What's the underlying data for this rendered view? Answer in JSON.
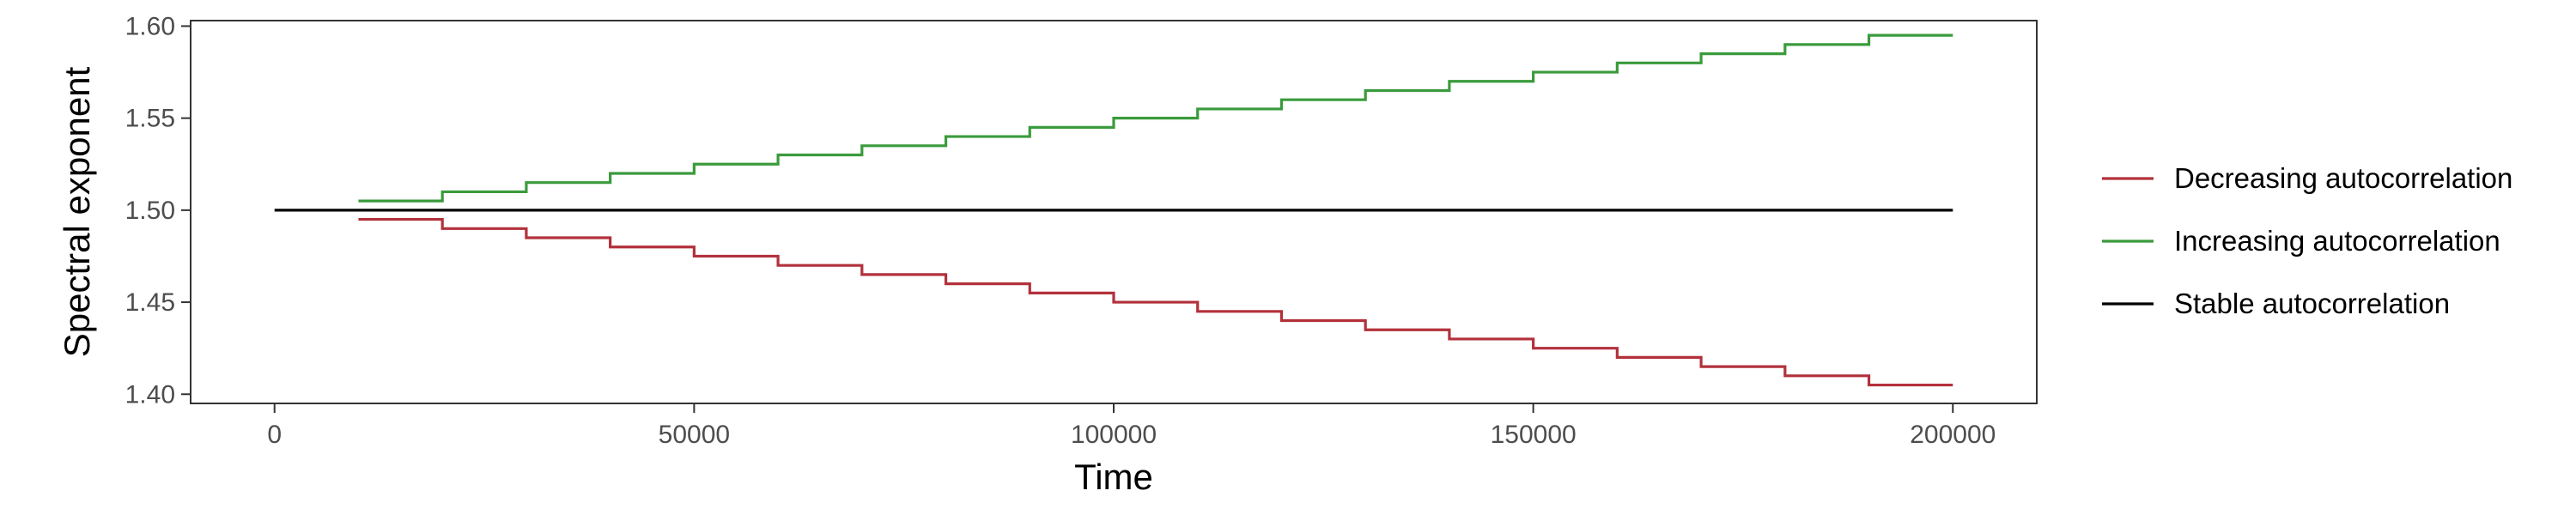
{
  "chart_data": {
    "type": "line",
    "line_style": "step",
    "title": "",
    "xlabel": "Time",
    "ylabel": "Spectral exponent",
    "xlim": [
      -10000,
      210000
    ],
    "ylim": [
      1.395,
      1.603
    ],
    "x_ticks": [
      0,
      50000,
      100000,
      150000,
      200000
    ],
    "x_tick_labels": [
      "0",
      "50000",
      "100000",
      "150000",
      "200000"
    ],
    "y_ticks": [
      1.4,
      1.45,
      1.5,
      1.55,
      1.6
    ],
    "y_tick_labels": [
      "1.40",
      "1.45",
      "1.50",
      "1.55",
      "1.60"
    ],
    "grid": false,
    "legend_position": "right",
    "series": [
      {
        "name": "Decreasing autocorrelation",
        "color": "#b2313b",
        "x": [
          10000,
          20000,
          30000,
          40000,
          50000,
          60000,
          70000,
          80000,
          90000,
          100000,
          110000,
          120000,
          130000,
          140000,
          150000,
          160000,
          170000,
          180000,
          190000,
          200000
        ],
        "y": [
          1.495,
          1.49,
          1.485,
          1.48,
          1.475,
          1.47,
          1.465,
          1.46,
          1.455,
          1.45,
          1.445,
          1.44,
          1.435,
          1.43,
          1.425,
          1.42,
          1.415,
          1.41,
          1.405,
          1.405
        ]
      },
      {
        "name": "Increasing autocorrelation",
        "color": "#3a9b3c",
        "x": [
          10000,
          20000,
          30000,
          40000,
          50000,
          60000,
          70000,
          80000,
          90000,
          100000,
          110000,
          120000,
          130000,
          140000,
          150000,
          160000,
          170000,
          180000,
          190000,
          200000
        ],
        "y": [
          1.505,
          1.51,
          1.515,
          1.52,
          1.525,
          1.53,
          1.535,
          1.54,
          1.545,
          1.55,
          1.555,
          1.56,
          1.565,
          1.57,
          1.575,
          1.58,
          1.585,
          1.59,
          1.595,
          1.595
        ]
      },
      {
        "name": "Stable autocorrelation",
        "color": "#000000",
        "x": [
          0,
          200000
        ],
        "y": [
          1.5,
          1.5
        ]
      }
    ]
  }
}
